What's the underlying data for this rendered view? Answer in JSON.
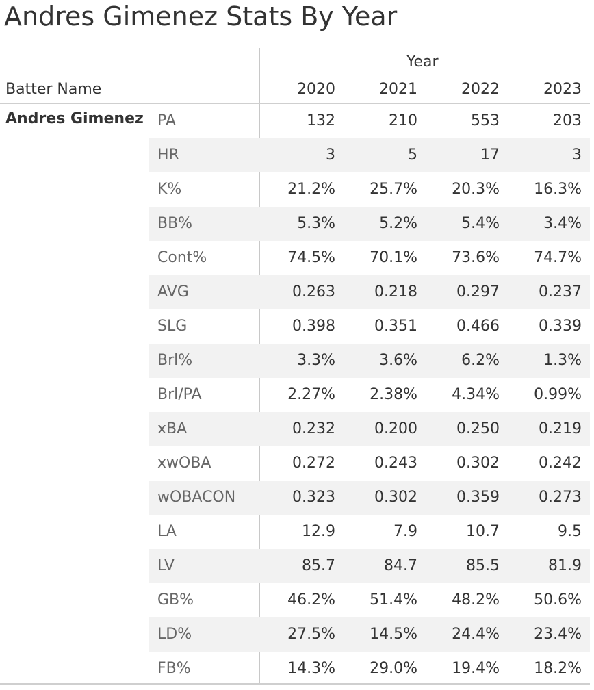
{
  "title": "Andres Gimenez Stats By Year",
  "header": {
    "year_label": "Year",
    "batter_label": "Batter Name",
    "years": [
      "2020",
      "2021",
      "2022",
      "2023"
    ]
  },
  "batter_name": "Andres Gimenez",
  "chart_data": {
    "type": "table",
    "title": "Andres Gimenez Stats By Year",
    "row_dimension": "Batter Name",
    "column_dimension": "Year",
    "columns": [
      "2020",
      "2021",
      "2022",
      "2023"
    ],
    "rows": [
      {
        "stat": "PA",
        "values": [
          "132",
          "210",
          "553",
          "203"
        ]
      },
      {
        "stat": "HR",
        "values": [
          "3",
          "5",
          "17",
          "3"
        ]
      },
      {
        "stat": "K%",
        "values": [
          "21.2%",
          "25.7%",
          "20.3%",
          "16.3%"
        ]
      },
      {
        "stat": "BB%",
        "values": [
          "5.3%",
          "5.2%",
          "5.4%",
          "3.4%"
        ]
      },
      {
        "stat": "Cont%",
        "values": [
          "74.5%",
          "70.1%",
          "73.6%",
          "74.7%"
        ]
      },
      {
        "stat": "AVG",
        "values": [
          "0.263",
          "0.218",
          "0.297",
          "0.237"
        ]
      },
      {
        "stat": "SLG",
        "values": [
          "0.398",
          "0.351",
          "0.466",
          "0.339"
        ]
      },
      {
        "stat": "Brl%",
        "values": [
          "3.3%",
          "3.6%",
          "6.2%",
          "1.3%"
        ]
      },
      {
        "stat": "Brl/PA",
        "values": [
          "2.27%",
          "2.38%",
          "4.34%",
          "0.99%"
        ]
      },
      {
        "stat": "xBA",
        "values": [
          "0.232",
          "0.200",
          "0.250",
          "0.219"
        ]
      },
      {
        "stat": "xwOBA",
        "values": [
          "0.272",
          "0.243",
          "0.302",
          "0.242"
        ]
      },
      {
        "stat": "wOBACON",
        "values": [
          "0.323",
          "0.302",
          "0.359",
          "0.273"
        ]
      },
      {
        "stat": "LA",
        "values": [
          "12.9",
          "7.9",
          "10.7",
          "9.5"
        ]
      },
      {
        "stat": "LV",
        "values": [
          "85.7",
          "84.7",
          "85.5",
          "81.9"
        ]
      },
      {
        "stat": "GB%",
        "values": [
          "46.2%",
          "51.4%",
          "48.2%",
          "50.6%"
        ]
      },
      {
        "stat": "LD%",
        "values": [
          "27.5%",
          "14.5%",
          "24.4%",
          "23.4%"
        ]
      },
      {
        "stat": "FB%",
        "values": [
          "14.3%",
          "29.0%",
          "19.4%",
          "18.2%"
        ]
      }
    ]
  }
}
